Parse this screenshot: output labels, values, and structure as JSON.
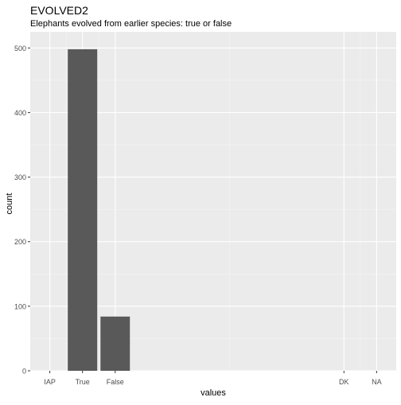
{
  "chart_data": {
    "type": "bar",
    "title": "EVOLVED2",
    "subtitle": "Elephants evolved from earlier species: true or false",
    "xlabel": "values",
    "ylabel": "count",
    "ylim": [
      0,
      525
    ],
    "yticks": [
      0,
      100,
      200,
      300,
      400,
      500
    ],
    "grid": true,
    "categories": [
      "IAP",
      "True",
      "False",
      "DK",
      "NA"
    ],
    "category_positions": [
      0,
      1,
      2,
      9,
      10
    ],
    "xlim": [
      -0.6,
      10.6
    ],
    "values": [
      0,
      498,
      84,
      0,
      0
    ],
    "colors": {
      "bar": "#595959",
      "panel": "#ebebeb",
      "grid_major": "#ffffff",
      "grid_minor": "#f5f5f5",
      "text": "#000000",
      "tick_text": "#4d4d4d",
      "tick": "#333333"
    }
  }
}
